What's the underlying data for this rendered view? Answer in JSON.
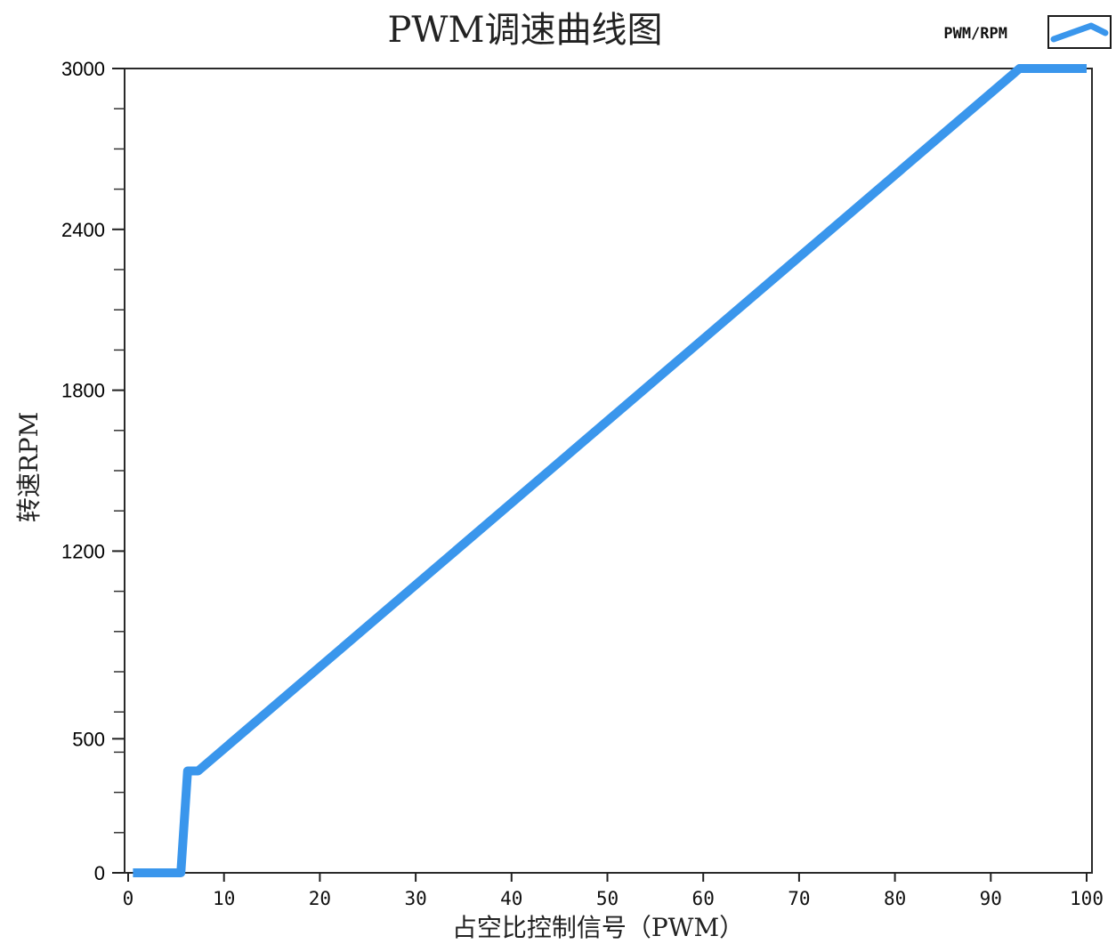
{
  "chart_data": {
    "type": "line",
    "title": "PWM调速曲线图",
    "xlabel": "占空比控制信号（PWM）",
    "ylabel": "转速RPM",
    "xlim": [
      0,
      100
    ],
    "ylim": [
      0,
      3000
    ],
    "x_ticks": [
      0,
      10,
      20,
      30,
      40,
      50,
      60,
      70,
      80,
      90,
      100
    ],
    "y_ticks": [
      0,
      500,
      1200,
      1800,
      2400,
      3000
    ],
    "x_tick_labels": [
      "0",
      "10",
      "20",
      "30",
      "40",
      "50",
      "60",
      "70",
      "80",
      "90",
      "100"
    ],
    "y_tick_labels": [
      "0",
      "500",
      "1200",
      "1800",
      "2400",
      "3000"
    ],
    "grid": false,
    "legend_position": "top-right",
    "series": [
      {
        "name": "PWM/RPM",
        "color": "#3a96ec",
        "x": [
          0.5,
          5.5,
          6.2,
          7.3,
          93.0,
          100.0
        ],
        "y": [
          0,
          0,
          380,
          380,
          3000,
          3000
        ]
      }
    ]
  }
}
